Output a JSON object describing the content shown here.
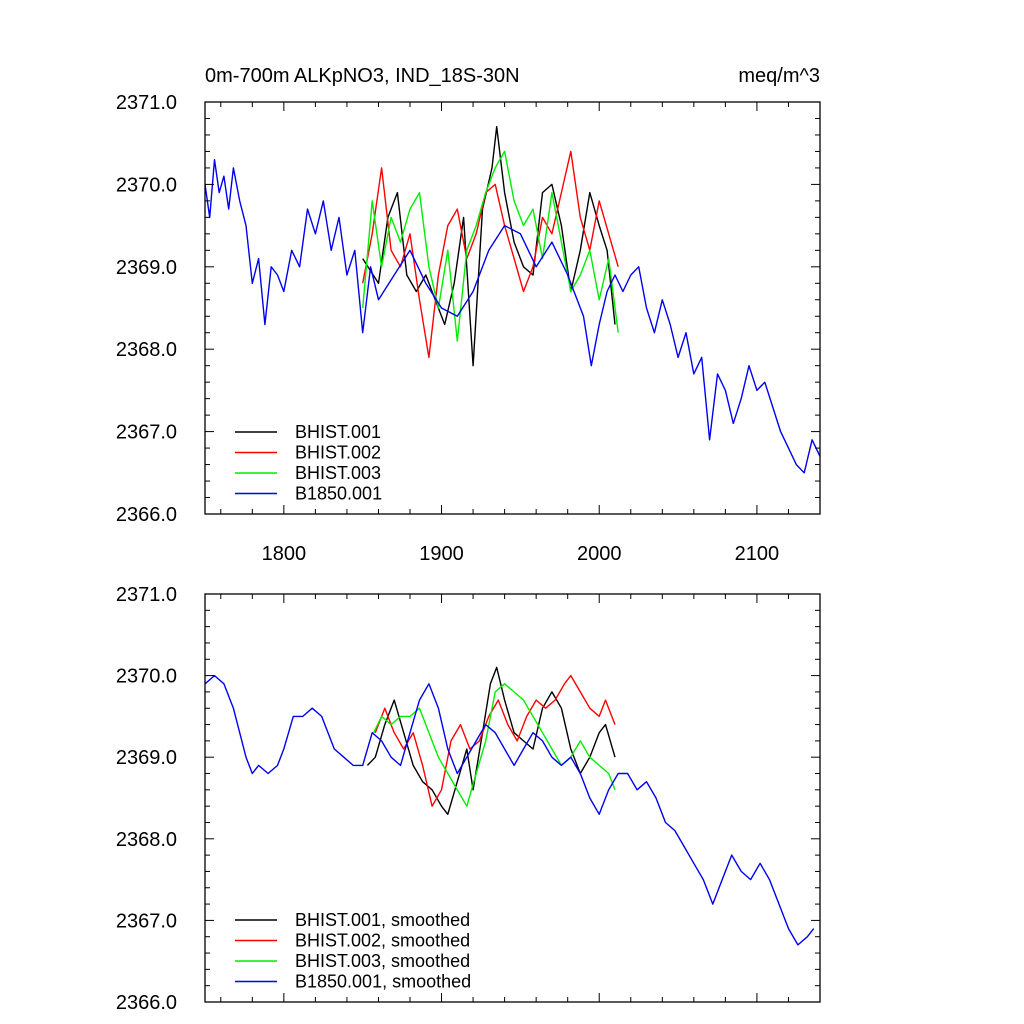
{
  "chart_data": [
    {
      "type": "line",
      "title_left": "0m-700m ALKpNO3, IND_18S-30N",
      "title_right": "meq/m^3",
      "xlabel": "",
      "ylabel": "",
      "xlim": [
        1750,
        2140
      ],
      "ylim": [
        2366.0,
        2371.0
      ],
      "x_ticks": [
        1800,
        1900,
        2000,
        2100
      ],
      "x_tick_labels": [
        "1800",
        "1900",
        "2000",
        "2100"
      ],
      "y_ticks": [
        2366.0,
        2367.0,
        2368.0,
        2369.0,
        2370.0,
        2371.0
      ],
      "y_tick_labels": [
        "2366.0",
        "2367.0",
        "2368.0",
        "2369.0",
        "2370.0",
        "2371.0"
      ],
      "legend_position": "bottom-left",
      "series": [
        {
          "name": "BHIST.001",
          "color": "#000000",
          "x": [
            1850,
            1860,
            1866,
            1872,
            1878,
            1884,
            1890,
            1896,
            1902,
            1908,
            1914,
            1920,
            1926,
            1932,
            1935,
            1940,
            1946,
            1952,
            1958,
            1964,
            1970,
            1976,
            1982,
            1988,
            1994,
            2000,
            2005,
            2010
          ],
          "y": [
            2369.1,
            2368.8,
            2369.6,
            2369.9,
            2368.9,
            2368.7,
            2368.9,
            2368.6,
            2368.3,
            2368.8,
            2369.6,
            2367.8,
            2369.7,
            2370.2,
            2370.7,
            2369.9,
            2369.3,
            2369.0,
            2368.9,
            2369.9,
            2370.0,
            2369.5,
            2368.7,
            2369.2,
            2369.9,
            2369.5,
            2369.2,
            2368.3
          ]
        },
        {
          "name": "BHIST.002",
          "color": "#ff0000",
          "x": [
            1850,
            1856,
            1862,
            1868,
            1874,
            1880,
            1886,
            1892,
            1898,
            1904,
            1910,
            1916,
            1922,
            1928,
            1934,
            1940,
            1946,
            1952,
            1958,
            1964,
            1970,
            1976,
            1982,
            1988,
            1994,
            2000,
            2006,
            2012
          ],
          "y": [
            2368.8,
            2369.4,
            2370.2,
            2369.2,
            2369.0,
            2369.4,
            2368.6,
            2367.9,
            2368.9,
            2369.5,
            2369.7,
            2369.1,
            2369.4,
            2369.9,
            2370.0,
            2369.5,
            2369.1,
            2368.7,
            2369.0,
            2369.6,
            2369.4,
            2369.9,
            2370.4,
            2369.6,
            2369.2,
            2369.8,
            2369.4,
            2369.0
          ]
        },
        {
          "name": "BHIST.003",
          "color": "#00ee00",
          "x": [
            1850,
            1856,
            1862,
            1868,
            1874,
            1880,
            1886,
            1892,
            1898,
            1904,
            1910,
            1916,
            1922,
            1928,
            1934,
            1940,
            1946,
            1952,
            1958,
            1964,
            1970,
            1976,
            1982,
            1988,
            1994,
            2000,
            2006,
            2012
          ],
          "y": [
            2368.5,
            2369.8,
            2369.0,
            2369.6,
            2369.3,
            2369.7,
            2369.9,
            2369.0,
            2368.5,
            2369.2,
            2368.1,
            2369.2,
            2369.5,
            2369.9,
            2370.2,
            2370.4,
            2369.8,
            2369.5,
            2369.7,
            2369.1,
            2369.9,
            2369.3,
            2368.7,
            2368.9,
            2369.2,
            2368.6,
            2369.1,
            2368.2
          ]
        },
        {
          "name": "B1850.001",
          "color": "#0000ee",
          "x": [
            1750,
            1753,
            1756,
            1759,
            1762,
            1765,
            1768,
            1772,
            1776,
            1780,
            1784,
            1788,
            1792,
            1796,
            1800,
            1805,
            1810,
            1815,
            1820,
            1825,
            1830,
            1835,
            1840,
            1845,
            1850,
            1855,
            1860,
            1870,
            1880,
            1890,
            1900,
            1910,
            1920,
            1930,
            1940,
            1950,
            1960,
            1970,
            1980,
            1990,
            1995,
            2000,
            2005,
            2010,
            2015,
            2020,
            2025,
            2030,
            2035,
            2040,
            2045,
            2050,
            2055,
            2060,
            2065,
            2070,
            2075,
            2080,
            2085,
            2090,
            2095,
            2100,
            2105,
            2110,
            2115,
            2120,
            2125,
            2130,
            2135,
            2140
          ],
          "y": [
            2370.0,
            2369.6,
            2370.3,
            2369.9,
            2370.1,
            2369.7,
            2370.2,
            2369.8,
            2369.5,
            2368.8,
            2369.1,
            2368.3,
            2369.0,
            2368.9,
            2368.7,
            2369.2,
            2369.0,
            2369.7,
            2369.4,
            2369.8,
            2369.2,
            2369.6,
            2368.9,
            2369.2,
            2368.2,
            2369.0,
            2368.6,
            2368.9,
            2369.2,
            2368.8,
            2368.5,
            2368.4,
            2368.7,
            2369.2,
            2369.5,
            2369.4,
            2369.0,
            2369.3,
            2368.9,
            2368.4,
            2367.8,
            2368.3,
            2368.7,
            2368.9,
            2368.7,
            2368.9,
            2369.0,
            2368.5,
            2368.2,
            2368.6,
            2368.3,
            2367.9,
            2368.2,
            2367.7,
            2367.9,
            2366.9,
            2367.7,
            2367.5,
            2367.1,
            2367.4,
            2367.8,
            2367.5,
            2367.6,
            2367.3,
            2367.0,
            2366.8,
            2366.6,
            2366.5,
            2366.9,
            2366.7
          ]
        }
      ]
    },
    {
      "type": "line",
      "title_left": "",
      "title_right": "",
      "xlabel": "",
      "ylabel": "",
      "xlim": [
        1750,
        2140
      ],
      "ylim": [
        2366.0,
        2371.0
      ],
      "x_ticks": [
        1800,
        1900,
        2000,
        2100
      ],
      "x_tick_labels": [],
      "y_ticks": [
        2366.0,
        2367.0,
        2368.0,
        2369.0,
        2370.0,
        2371.0
      ],
      "y_tick_labels": [
        "2366.0",
        "2367.0",
        "2368.0",
        "2369.0",
        "2370.0",
        "2371.0"
      ],
      "legend_position": "bottom-left",
      "series": [
        {
          "name": "BHIST.001, smoothed",
          "color": "#000000",
          "x": [
            1853,
            1858,
            1864,
            1870,
            1876,
            1882,
            1888,
            1894,
            1900,
            1904,
            1910,
            1916,
            1920,
            1926,
            1931,
            1935,
            1940,
            1946,
            1952,
            1958,
            1964,
            1970,
            1976,
            1982,
            1988,
            1994,
            2000,
            2004,
            2010
          ],
          "y": [
            2368.9,
            2369.0,
            2369.4,
            2369.7,
            2369.3,
            2368.9,
            2368.7,
            2368.6,
            2368.4,
            2368.3,
            2368.7,
            2369.1,
            2368.6,
            2369.3,
            2369.9,
            2370.1,
            2369.7,
            2369.3,
            2369.2,
            2369.1,
            2369.6,
            2369.8,
            2369.6,
            2369.1,
            2368.8,
            2369.0,
            2369.3,
            2369.4,
            2369.0
          ]
        },
        {
          "name": "BHIST.002, smoothed",
          "color": "#ff0000",
          "x": [
            1858,
            1864,
            1870,
            1876,
            1882,
            1888,
            1894,
            1900,
            1906,
            1912,
            1918,
            1924,
            1930,
            1936,
            1942,
            1948,
            1954,
            1960,
            1966,
            1972,
            1978,
            1982,
            1988,
            1994,
            2000,
            2004,
            2008,
            2010
          ],
          "y": [
            2369.3,
            2369.6,
            2369.3,
            2369.1,
            2369.3,
            2368.9,
            2368.4,
            2368.6,
            2369.2,
            2369.4,
            2369.1,
            2369.2,
            2369.5,
            2369.7,
            2369.4,
            2369.2,
            2369.5,
            2369.7,
            2369.6,
            2369.7,
            2369.9,
            2370.0,
            2369.8,
            2369.6,
            2369.5,
            2369.7,
            2369.5,
            2369.4
          ]
        },
        {
          "name": "BHIST.003, smoothed",
          "color": "#00ee00",
          "x": [
            1857,
            1862,
            1868,
            1874,
            1880,
            1886,
            1892,
            1898,
            1904,
            1910,
            1916,
            1922,
            1928,
            1934,
            1940,
            1946,
            1952,
            1958,
            1964,
            1970,
            1976,
            1982,
            1988,
            1994,
            2000,
            2006,
            2010
          ],
          "y": [
            2369.3,
            2369.5,
            2369.4,
            2369.5,
            2369.5,
            2369.6,
            2369.3,
            2369.0,
            2368.8,
            2368.6,
            2368.4,
            2368.8,
            2369.2,
            2369.8,
            2369.9,
            2369.8,
            2369.7,
            2369.5,
            2369.3,
            2369.1,
            2368.9,
            2369.0,
            2369.2,
            2369.0,
            2368.9,
            2368.8,
            2368.6
          ]
        },
        {
          "name": "B1850.001, smoothed",
          "color": "#0000ee",
          "x": [
            1750,
            1756,
            1762,
            1768,
            1772,
            1776,
            1780,
            1784,
            1790,
            1796,
            1800,
            1806,
            1812,
            1818,
            1824,
            1828,
            1832,
            1838,
            1844,
            1850,
            1856,
            1862,
            1868,
            1874,
            1880,
            1886,
            1892,
            1898,
            1904,
            1910,
            1916,
            1922,
            1928,
            1934,
            1940,
            1946,
            1952,
            1958,
            1964,
            1970,
            1976,
            1982,
            1988,
            1994,
            2000,
            2006,
            2012,
            2018,
            2024,
            2030,
            2036,
            2042,
            2048,
            2054,
            2060,
            2066,
            2072,
            2078,
            2084,
            2090,
            2096,
            2102,
            2108,
            2114,
            2120,
            2126,
            2132,
            2136
          ],
          "y": [
            2369.9,
            2370.0,
            2369.9,
            2369.6,
            2369.3,
            2369.0,
            2368.8,
            2368.9,
            2368.8,
            2368.9,
            2369.1,
            2369.5,
            2369.5,
            2369.6,
            2369.5,
            2369.3,
            2369.1,
            2369.0,
            2368.9,
            2368.9,
            2369.3,
            2369.2,
            2369.0,
            2368.9,
            2369.3,
            2369.7,
            2369.9,
            2369.6,
            2369.1,
            2368.8,
            2369.0,
            2369.2,
            2369.4,
            2369.3,
            2369.1,
            2368.9,
            2369.1,
            2369.3,
            2369.2,
            2369.0,
            2368.9,
            2369.0,
            2368.8,
            2368.5,
            2368.3,
            2368.6,
            2368.8,
            2368.8,
            2368.6,
            2368.7,
            2368.5,
            2368.2,
            2368.1,
            2367.9,
            2367.7,
            2367.5,
            2367.2,
            2367.5,
            2367.8,
            2367.6,
            2367.5,
            2367.7,
            2367.5,
            2367.2,
            2366.9,
            2366.7,
            2366.8,
            2366.9
          ]
        }
      ]
    }
  ]
}
